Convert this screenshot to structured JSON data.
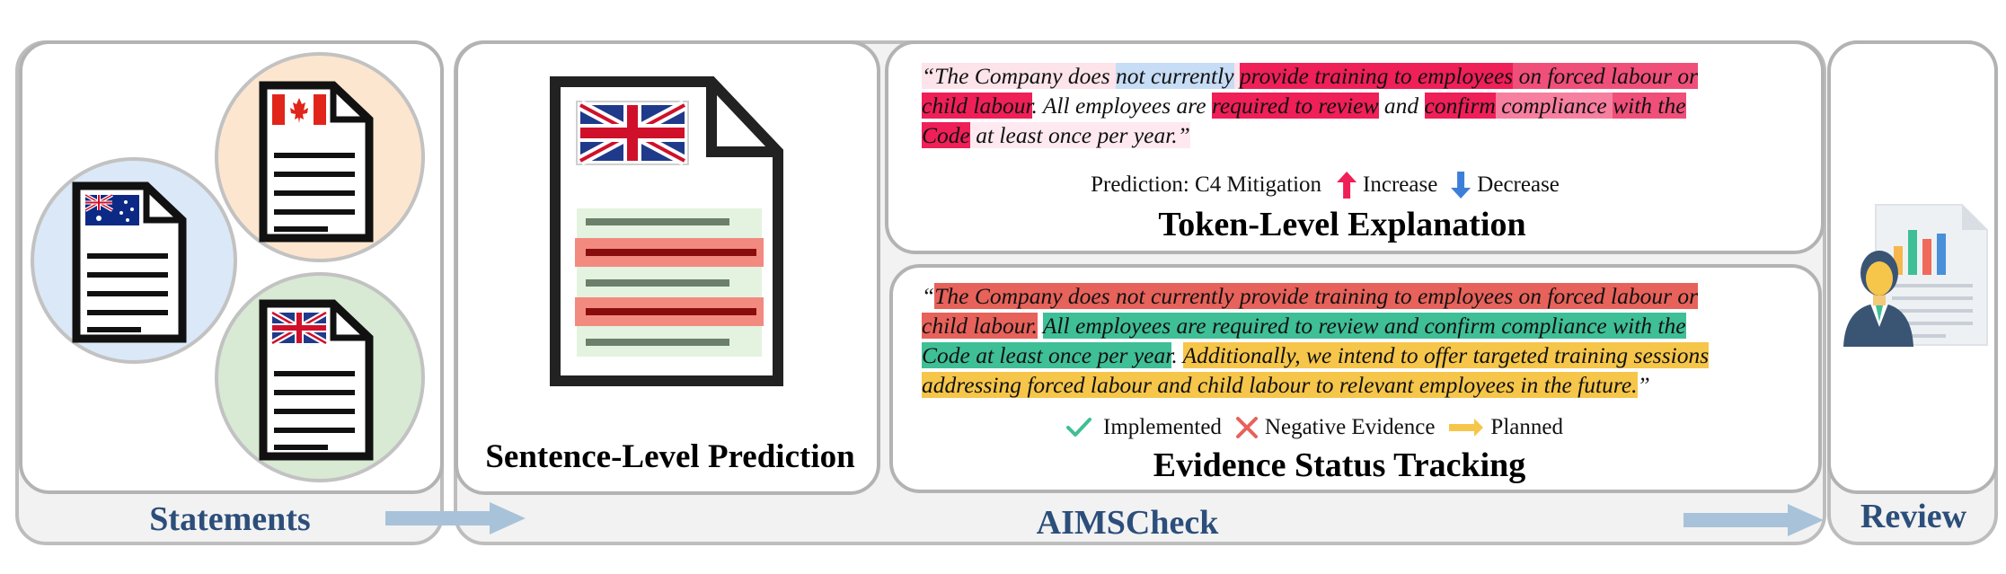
{
  "sections": {
    "statements": "Statements",
    "aimscheck": "AIMSCheck",
    "review": "Review"
  },
  "panels": {
    "sentence_level": {
      "title": "Sentence-Level Prediction"
    },
    "token_level": {
      "title": "Token-Level Explanation",
      "quote_lines": [
        [
          {
            "t": "“The Company does ",
            "bg": "#fce4ea"
          },
          {
            "t": "not currently",
            "bg": "#c7dcf5"
          },
          {
            "t": " ",
            "bg": "#fce4ea"
          },
          {
            "t": "provide training to employees",
            "bg": "#ef1f58"
          },
          {
            "t": " on forced labour or",
            "bg": "#f04f7a"
          }
        ],
        [
          {
            "t": "child labour",
            "bg": "#ef1f58"
          },
          {
            "t": ". All employees are ",
            "bg": "#ffffff"
          },
          {
            "t": "required to review",
            "bg": "#ef1f58"
          },
          {
            "t": " and ",
            "bg": "#ffffff"
          },
          {
            "t": "confirm",
            "bg": "#ef1f58"
          },
          {
            "t": " compliance ",
            "bg": "#f77fa0"
          },
          {
            "t": "with the",
            "bg": "#f04f7a"
          }
        ],
        [
          {
            "t": "Code",
            "bg": "#ef1f58"
          },
          {
            "t": " at least once per year.”",
            "bg": "#fde9ef"
          }
        ]
      ],
      "legend": {
        "prediction": "Prediction: C4 Mitigation",
        "increase": "Increase",
        "decrease": "Decrease"
      }
    },
    "evidence_status": {
      "title": "Evidence Status Tracking",
      "quote_lines": [
        [
          {
            "t": "“",
            "bg": "#ffffff"
          },
          {
            "t": "The Company does not currently provide training to employees on forced labour or",
            "bg": "#e7625a"
          }
        ],
        [
          {
            "t": "child labour.",
            "bg": "#e7625a"
          },
          {
            "t": " ",
            "bg": "#ffffff"
          },
          {
            "t": "All employees are required to review and confirm compliance with the",
            "bg": "#3fbf96"
          }
        ],
        [
          {
            "t": "Code at least once per year",
            "bg": "#3fbf96"
          },
          {
            "t": ". ",
            "bg": "#ffffff"
          },
          {
            "t": "Additionally, we intend to offer targeted training sessions",
            "bg": "#f6c64a"
          }
        ],
        [
          {
            "t": "addressing forced labour and child labour to relevant employees in the future.",
            "bg": "#f6c64a"
          },
          {
            "t": "”",
            "bg": "#ffffff"
          }
        ]
      ],
      "legend": {
        "implemented": "Implemented",
        "negative": "Negative Evidence",
        "planned": "Planned"
      }
    }
  },
  "colors": {
    "section_label": "#2c4e7a",
    "arrow": "#a8c3d9",
    "increase_arrow": "#ef1f58",
    "decrease_arrow": "#3d7fd8",
    "implemented_check": "#3fbf96",
    "negative_cross": "#e7625a",
    "planned_arrow": "#f6c64a",
    "circle_australia": "#dbe8f7",
    "circle_canada": "#fde6cf",
    "circle_uk": "#d8e9d4"
  },
  "icons": {
    "statements": [
      "australia-flag-document-icon",
      "canada-flag-document-icon",
      "uk-flag-document-icon"
    ],
    "sentence_level": "uk-flag-highlighted-document-icon",
    "review": "reviewer-with-report-icon"
  }
}
